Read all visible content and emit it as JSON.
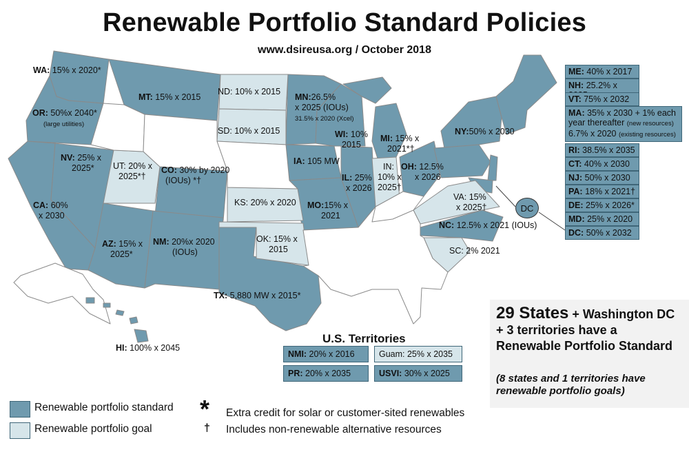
{
  "header": {
    "title": "Renewable Portfolio Standard Policies",
    "subtitle": "www.dsireusa.org / October 2018"
  },
  "colors": {
    "standard": "#6f9aae",
    "goal": "#d6e5ea",
    "none": "#ffffff"
  },
  "states": {
    "wa": {
      "code": "WA:",
      "text": " 15% x 2020*"
    },
    "or": {
      "code": "OR:",
      "text": " 50%x 2040*",
      "note": "(large utilities)"
    },
    "ca": {
      "code": "CA:",
      "text": " 60%",
      "text2": "x 2030"
    },
    "nv": {
      "code": "NV:",
      "text": " 25% x",
      "text2": "2025*"
    },
    "ut": {
      "text": "UT: 20% x",
      "text2": "2025*†"
    },
    "az": {
      "code": "AZ:",
      "text": " 15% x",
      "text2": "2025*"
    },
    "mt": {
      "code": "MT:",
      "text": " 15% x 2015"
    },
    "co": {
      "code": "CO:",
      "text": " 30% by 2020",
      "text2": "(IOUs) *†"
    },
    "nm": {
      "code": "NM:",
      "text": " 20%x 2020",
      "text2": "(IOUs)"
    },
    "nd": {
      "text": "ND: 10% x 2015"
    },
    "sd": {
      "text": "SD: 10% x 2015"
    },
    "ks": {
      "text": "KS: 20% x 2020"
    },
    "ok": {
      "text": "OK: 15% x",
      "text2": "2015"
    },
    "tx": {
      "code": "TX:",
      "text": " 5,880 MW x 2015*"
    },
    "mn": {
      "code": "MN:",
      "text": "26.5%",
      "text2": "x 2025 (IOUs)",
      "note": "31.5% x 2020 (Xcel)"
    },
    "ia": {
      "code": "IA:",
      "text": " 105 MW"
    },
    "mo": {
      "code": "MO:",
      "text": "15% x",
      "text2": "2021"
    },
    "wi": {
      "code": "WI:",
      "text": " 10%",
      "text2": "2015"
    },
    "il": {
      "code": "IL:",
      "text": " 25%",
      "text2": "x 2026"
    },
    "in": {
      "text": "IN:",
      "text2": "10% x",
      "text3": "2025†"
    },
    "mi": {
      "code": "MI:",
      "text": " 15% x",
      "text2": "2021*†"
    },
    "oh": {
      "code": "OH:",
      "text": " 12.5%",
      "text2": "x 2026"
    },
    "ny": {
      "code": "NY:",
      "text": "50% x 2030"
    },
    "va": {
      "text": "VA: 15%",
      "text2": "x 2025†"
    },
    "nc": {
      "code": "NC:",
      "text": " 12.5% x 2021 (IOUs)"
    },
    "sc": {
      "text": "SC: 2% 2021"
    },
    "hi": {
      "code": "HI:",
      "text": " 100% x 2045"
    },
    "dc_circle": "DC"
  },
  "northeast": [
    {
      "code": "ME:",
      "text": " 40% x 2017"
    },
    {
      "code": "NH:",
      "text": " 25.2% x 2025"
    },
    {
      "code": "VT:",
      "text": " 75% x 2032"
    },
    {
      "code": "MA:",
      "text": " 35% x 2030 + 1% each",
      "text2": "year thereafter ",
      "small2": "(new resources)",
      "text3": "6.7% x 2020 ",
      "small3": "(existing resources)"
    },
    {
      "code": "RI:",
      "text": " 38.5% x 2035"
    },
    {
      "code": "CT:",
      "text": " 40% x 2030"
    },
    {
      "code": "NJ:",
      "text": " 50% x 2030"
    },
    {
      "code": "PA:",
      "text": " 18% x 2021†"
    },
    {
      "code": "DE:",
      "text": " 25% x 2026*"
    },
    {
      "code": "MD:",
      "text": " 25% x 2020"
    },
    {
      "code": "DC:",
      "text": " 50% x 2032"
    }
  ],
  "territories": {
    "title": "U.S. Territories",
    "items": [
      {
        "code": "NMI:",
        "text": " 20% x 2016"
      },
      {
        "text": "Guam: 25% x 2035"
      },
      {
        "code": "PR:",
        "text": " 20% x 2035"
      },
      {
        "code": "USVI:",
        "text": " 30% x 2025"
      }
    ]
  },
  "summary": {
    "big": "29 States",
    "rest": " + Washington DC + 3 territories have a Renewable Portfolio Standard",
    "italic": "(8 states and 1 territories have renewable portfolio goals)"
  },
  "legend": {
    "standard": "Renewable portfolio standard",
    "goal": "Renewable portfolio goal"
  },
  "notes": {
    "asterisk_symbol": "*",
    "asterisk": "Extra credit for solar or customer-sited renewables",
    "dagger_symbol": "†",
    "dagger": "Includes non-renewable alternative resources"
  }
}
